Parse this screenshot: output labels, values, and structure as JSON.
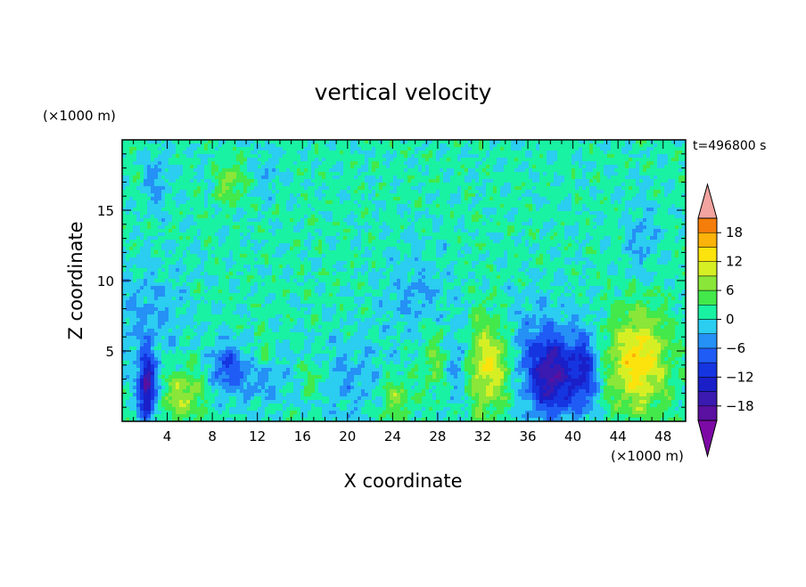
{
  "chart_data": {
    "type": "heatmap",
    "title": "vertical velocity",
    "xlabel": "X coordinate",
    "ylabel": "Z coordinate",
    "x_unit": "(×1000 m)",
    "y_unit": "(×1000 m)",
    "time_label": "t=496800 s",
    "xlim": [
      0,
      50
    ],
    "ylim": [
      0,
      20
    ],
    "x_ticks": [
      4,
      8,
      12,
      16,
      20,
      24,
      28,
      32,
      36,
      40,
      44,
      48
    ],
    "y_ticks": [
      5,
      10,
      15
    ],
    "colorbar": {
      "range": [
        -21,
        21
      ],
      "tick_labels": [
        "18",
        "12",
        "6",
        "0",
        "−6",
        "−12",
        "−18"
      ],
      "tick_values": [
        18,
        12,
        6,
        0,
        -6,
        -12,
        -18
      ],
      "levels": [
        -21,
        -18,
        -15,
        -12,
        -9,
        -6,
        -3,
        0,
        3,
        6,
        9,
        12,
        15,
        18,
        21
      ],
      "colors": [
        "#5a10a0",
        "#3a1ab0",
        "#1a1fc8",
        "#1535e0",
        "#1f5cf5",
        "#2590f5",
        "#2bcdf0",
        "#19f2a2",
        "#43e84a",
        "#8ae638",
        "#d6ef25",
        "#fde30d",
        "#fbb20a",
        "#f57d0a",
        "#ee400f",
        "#e51b1b"
      ],
      "under_color": "#7d0aa5",
      "over_color": "#f3a3a0"
    },
    "features": [
      {
        "x": 2.2,
        "z": 2.4,
        "amp": -19,
        "sx": 0.55,
        "sz": 1.7
      },
      {
        "x": 5.4,
        "z": 1.9,
        "amp": 8,
        "sx": 1.2,
        "sz": 1.3
      },
      {
        "x": 9.3,
        "z": 3.9,
        "amp": -9,
        "sx": 0.9,
        "sz": 1.2
      },
      {
        "x": 12.0,
        "z": 3.2,
        "amp": -5,
        "sx": 1.8,
        "sz": 1.4
      },
      {
        "x": 12.4,
        "z": 4.8,
        "amp": 5,
        "sx": 0.6,
        "sz": 0.8
      },
      {
        "x": 17.0,
        "z": 3.0,
        "amp": 5,
        "sx": 0.8,
        "sz": 1.0
      },
      {
        "x": 20.0,
        "z": 3.0,
        "amp": -4,
        "sx": 2.5,
        "sz": 2.0
      },
      {
        "x": 24.2,
        "z": 1.6,
        "amp": 6,
        "sx": 0.9,
        "sz": 1.1
      },
      {
        "x": 27.8,
        "z": 4.6,
        "amp": 5,
        "sx": 0.9,
        "sz": 1.6
      },
      {
        "x": 29.8,
        "z": 4.0,
        "amp": -6,
        "sx": 0.9,
        "sz": 2.0
      },
      {
        "x": 32.6,
        "z": 4.0,
        "amp": 13,
        "sx": 1.5,
        "sz": 2.3
      },
      {
        "x": 38.2,
        "z": 3.2,
        "amp": -15,
        "sx": 1.3,
        "sz": 2.0
      },
      {
        "x": 41.0,
        "z": 3.5,
        "amp": -12,
        "sx": 0.9,
        "sz": 2.0
      },
      {
        "x": 36.0,
        "z": 4.5,
        "amp": -6,
        "sx": 2.5,
        "sz": 2.8
      },
      {
        "x": 45.8,
        "z": 4.2,
        "amp": 13,
        "sx": 1.8,
        "sz": 2.5
      },
      {
        "x": 2.0,
        "z": 7.5,
        "amp": -4,
        "sx": 2.5,
        "sz": 2.5
      },
      {
        "x": 3.0,
        "z": 17.0,
        "amp": -5,
        "sx": 0.7,
        "sz": 1.5
      },
      {
        "x": 9.5,
        "z": 17.0,
        "amp": 6,
        "sx": 0.8,
        "sz": 1.0
      },
      {
        "x": 13.0,
        "z": 17.5,
        "amp": -4,
        "sx": 0.6,
        "sz": 1.2
      },
      {
        "x": 26.0,
        "z": 9.0,
        "amp": -4,
        "sx": 2.0,
        "sz": 2.0
      },
      {
        "x": 46.0,
        "z": 13.0,
        "amp": -4,
        "sx": 1.0,
        "sz": 2.0
      }
    ]
  }
}
